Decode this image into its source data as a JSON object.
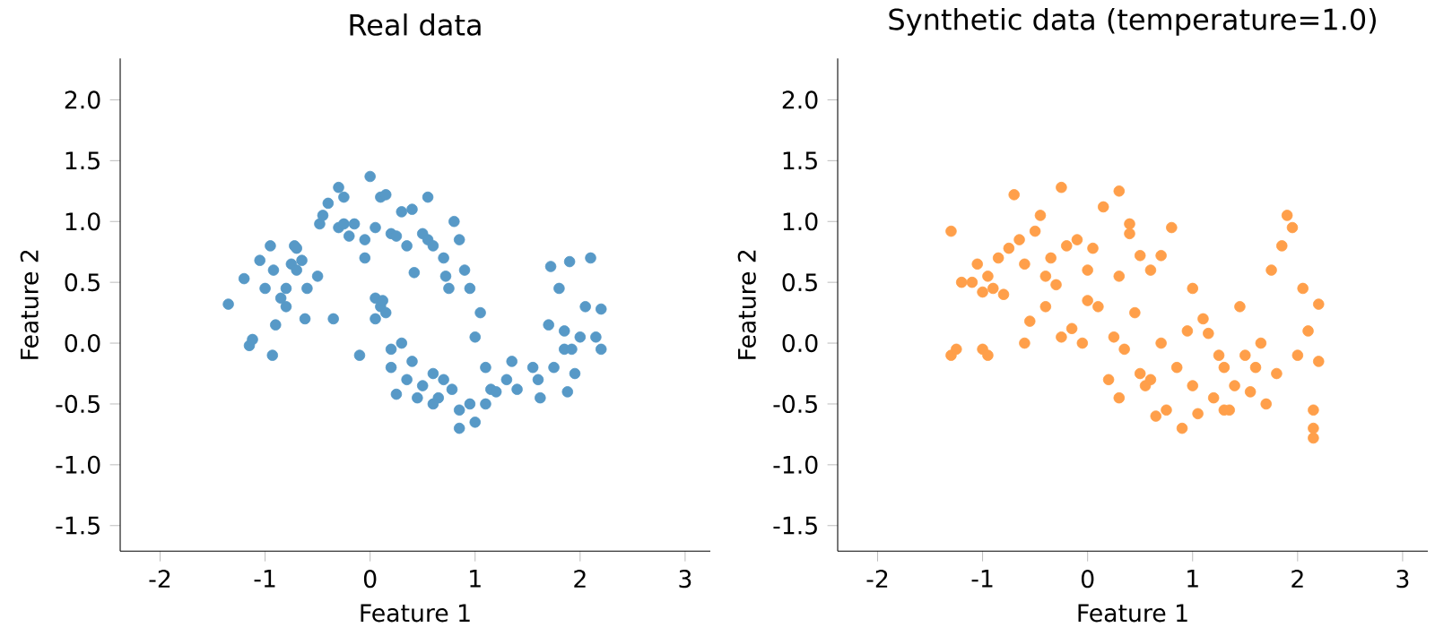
{
  "chart_data": [
    {
      "type": "scatter",
      "title": "Real data",
      "xlabel": "Feature 1",
      "ylabel": "Feature 2",
      "xlim": [
        -2.38,
        3.24
      ],
      "ylim": [
        -1.71,
        2.34
      ],
      "xticks": [
        -2,
        -1,
        0,
        1,
        2,
        3
      ],
      "yticks": [
        -1.5,
        {
          "value": -1,
          "label": "-1.0"
        },
        -0.5,
        {
          "value": 0,
          "label": "0.0"
        },
        0.5,
        {
          "value": 1,
          "label": "1.0"
        },
        1.5,
        {
          "value": 2,
          "label": "2.0"
        }
      ],
      "grid": false,
      "series": [
        {
          "color": "#5799c7",
          "x": [
            -1.35,
            -1.2,
            -1.15,
            -1.12,
            -1.05,
            -1.0,
            -0.95,
            -0.92,
            -0.9,
            -0.93,
            -0.85,
            -0.8,
            -0.8,
            -0.75,
            -0.7,
            -0.65,
            -0.62,
            -0.6,
            -0.72,
            -0.7,
            -0.5,
            -0.48,
            -0.45,
            -0.4,
            -0.35,
            -0.3,
            -0.25,
            -0.3,
            -0.25,
            -0.2,
            -0.15,
            -0.1,
            -0.05,
            0.0,
            0.05,
            0.05,
            0.1,
            0.15,
            0.1,
            0.12,
            0.15,
            0.2,
            0.2,
            0.2,
            0.25,
            0.25,
            0.3,
            0.3,
            0.35,
            0.35,
            0.4,
            0.42,
            0.45,
            0.5,
            0.5,
            0.55,
            0.55,
            0.6,
            0.6,
            0.65,
            0.7,
            0.72,
            0.75,
            0.78,
            0.8,
            0.85,
            0.85,
            0.9,
            0.95,
            0.95,
            1.0,
            1.0,
            1.05,
            1.1,
            1.1,
            1.15,
            1.2,
            1.3,
            1.35,
            1.4,
            1.55,
            1.6,
            1.62,
            1.7,
            1.72,
            1.75,
            1.8,
            1.85,
            1.88,
            1.9,
            1.92,
            1.95,
            2.0,
            2.05,
            2.1,
            2.15,
            2.2,
            2.2,
            1.85,
            0.05,
            -0.05,
            0.4,
            0.7,
            0.85,
            0.6
          ],
          "values": [
            0.32,
            0.53,
            -0.02,
            0.03,
            0.68,
            0.45,
            0.8,
            0.6,
            0.15,
            -0.1,
            0.37,
            0.45,
            0.3,
            0.65,
            0.6,
            0.68,
            0.2,
            0.45,
            0.8,
            0.78,
            0.55,
            0.98,
            1.05,
            1.15,
            0.2,
            1.28,
            1.2,
            0.95,
            0.98,
            0.88,
            0.98,
            -0.1,
            0.85,
            1.37,
            0.95,
            0.37,
            1.2,
            1.22,
            0.3,
            0.35,
            0.25,
            0.9,
            -0.05,
            -0.2,
            0.88,
            -0.42,
            0.0,
            1.08,
            0.8,
            -0.3,
            1.1,
            0.58,
            -0.45,
            0.9,
            -0.35,
            1.2,
            0.85,
            0.8,
            -0.25,
            -0.45,
            0.7,
            0.55,
            0.45,
            -0.38,
            1.0,
            0.85,
            -0.7,
            0.6,
            0.45,
            -0.5,
            0.05,
            -0.65,
            0.25,
            -0.2,
            -0.5,
            -0.38,
            -0.4,
            -0.3,
            -0.15,
            -0.38,
            -0.2,
            -0.3,
            -0.45,
            0.15,
            0.63,
            -0.2,
            0.45,
            -0.05,
            -0.4,
            0.67,
            -0.05,
            -0.25,
            0.05,
            0.3,
            0.7,
            0.05,
            0.28,
            -0.05,
            0.1,
            0.2,
            0.7,
            -0.15,
            -0.3,
            -0.55,
            -0.5
          ]
        }
      ]
    },
    {
      "type": "scatter",
      "title": "Synthetic data (temperature=1.0)",
      "xlabel": "Feature 1",
      "ylabel": "Feature 2",
      "xlim": [
        -2.38,
        3.24
      ],
      "ylim": [
        -1.71,
        2.34
      ],
      "xticks": [
        -2,
        -1,
        0,
        1,
        2,
        3
      ],
      "yticks": [
        -1.5,
        {
          "value": -1,
          "label": "-1.0"
        },
        -0.5,
        {
          "value": 0,
          "label": "0.0"
        },
        0.5,
        {
          "value": 1,
          "label": "1.0"
        },
        1.5,
        {
          "value": 2,
          "label": "2.0"
        }
      ],
      "grid": false,
      "series": [
        {
          "color": "#ff9f4a",
          "x": [
            -1.3,
            -1.3,
            -1.25,
            -1.2,
            -1.1,
            -1.05,
            -1.0,
            -1.0,
            -0.95,
            -0.95,
            -0.9,
            -0.85,
            -0.8,
            -0.75,
            -0.7,
            -0.65,
            -0.6,
            -0.6,
            -0.55,
            -0.5,
            -0.45,
            -0.4,
            -0.4,
            -0.35,
            -0.3,
            -0.25,
            -0.25,
            -0.2,
            -0.15,
            -0.1,
            -0.05,
            0.0,
            0.0,
            0.05,
            0.1,
            0.15,
            0.2,
            0.25,
            0.3,
            0.3,
            0.35,
            0.4,
            0.45,
            0.5,
            0.5,
            0.55,
            0.6,
            0.65,
            0.7,
            0.7,
            0.75,
            0.8,
            0.85,
            0.9,
            0.95,
            1.0,
            1.0,
            1.05,
            1.1,
            1.15,
            1.2,
            1.25,
            1.3,
            1.35,
            1.4,
            1.45,
            1.5,
            1.55,
            1.6,
            1.65,
            1.7,
            1.75,
            1.8,
            1.85,
            1.9,
            1.95,
            2.0,
            2.05,
            2.1,
            2.15,
            2.15,
            2.2,
            2.2,
            2.15,
            1.3,
            0.6,
            0.3,
            0.4
          ],
          "values": [
            0.92,
            -0.1,
            -0.05,
            0.5,
            0.5,
            0.65,
            0.42,
            -0.05,
            -0.1,
            0.55,
            0.45,
            0.7,
            0.4,
            0.78,
            1.22,
            0.85,
            0.65,
            0.0,
            0.18,
            0.92,
            1.05,
            0.55,
            0.3,
            0.7,
            0.48,
            1.28,
            0.05,
            0.8,
            0.12,
            0.85,
            0.0,
            0.6,
            0.35,
            0.78,
            0.3,
            1.12,
            -0.3,
            0.05,
            1.25,
            0.55,
            -0.05,
            0.98,
            0.25,
            -0.25,
            0.72,
            -0.35,
            0.6,
            -0.6,
            0.0,
            0.72,
            -0.55,
            0.95,
            -0.2,
            -0.7,
            0.1,
            0.45,
            -0.35,
            -0.58,
            0.2,
            0.08,
            -0.45,
            -0.1,
            -0.2,
            -0.55,
            -0.35,
            0.3,
            -0.1,
            -0.4,
            -0.2,
            0.0,
            -0.5,
            0.6,
            -0.25,
            0.8,
            1.05,
            0.95,
            -0.1,
            0.45,
            0.1,
            -0.55,
            -0.7,
            0.32,
            -0.15,
            -0.78,
            -0.55,
            -0.3,
            -0.45,
            0.9
          ]
        }
      ]
    }
  ]
}
